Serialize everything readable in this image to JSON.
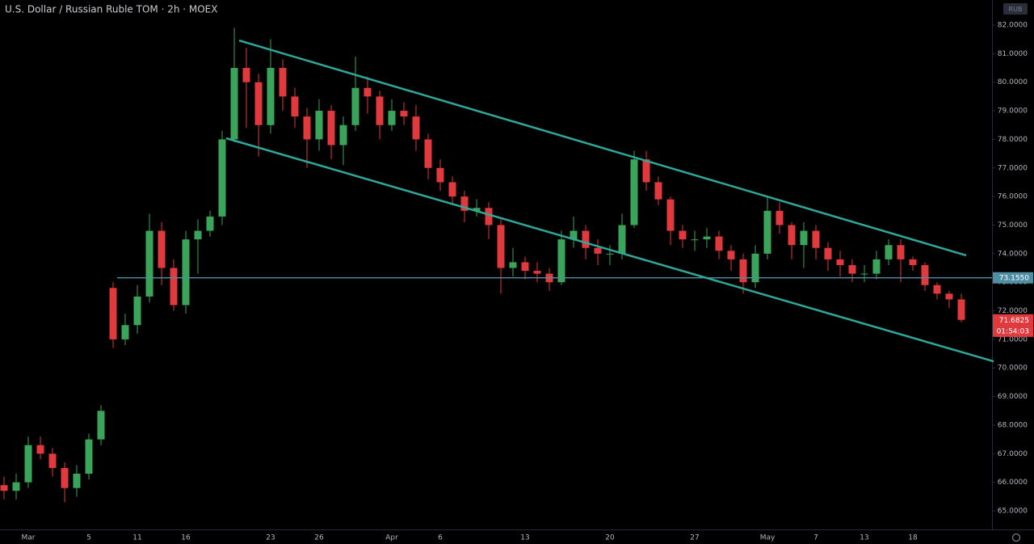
{
  "chart_data": {
    "type": "candlestick",
    "title": "U.S. Dollar / Russian Ruble TOM · 2h · MOEX",
    "currency": "RUB",
    "countdown": "01:54:03",
    "up_color": "#3aa55a",
    "down_color": "#e0393e",
    "categories": [
      null,
      null,
      "Mar",
      null,
      null,
      null,
      null,
      "5",
      null,
      null,
      null,
      "11",
      null,
      null,
      null,
      "16",
      null,
      null,
      null,
      null,
      null,
      null,
      "23",
      null,
      null,
      null,
      "26",
      null,
      null,
      null,
      null,
      null,
      "Apr",
      null,
      null,
      null,
      "6",
      null,
      null,
      null,
      null,
      null,
      null,
      "13",
      null,
      null,
      null,
      null,
      null,
      null,
      "20",
      null,
      null,
      null,
      null,
      null,
      null,
      "27",
      null,
      null,
      null,
      null,
      null,
      "May",
      null,
      null,
      null,
      "7",
      null,
      null,
      null,
      "13",
      null,
      null,
      null,
      "18",
      null,
      null,
      null,
      null
    ],
    "open": [
      65.9,
      65.7,
      66.0,
      67.3,
      67.0,
      66.5,
      65.8,
      66.3,
      67.5,
      72.8,
      71.0,
      71.5,
      72.5,
      74.8,
      73.5,
      72.2,
      74.5,
      74.8,
      75.3,
      78.0,
      80.5,
      80.0,
      78.5,
      80.5,
      79.5,
      78.8,
      78.0,
      79.0,
      77.8,
      78.5,
      79.8,
      79.5,
      78.5,
      79.0,
      78.8,
      78.0,
      77.0,
      76.5,
      76.0,
      75.5,
      75.6,
      75.0,
      73.5,
      73.7,
      73.4,
      73.3,
      73.0,
      74.5,
      74.8,
      74.2,
      74.0,
      74.0,
      75.0,
      77.3,
      76.5,
      75.9,
      74.8,
      74.5,
      74.5,
      74.6,
      74.1,
      73.8,
      73.0,
      74.0,
      75.5,
      75.0,
      74.3,
      74.8,
      74.2,
      73.8,
      73.6,
      73.3,
      73.3,
      73.8,
      74.3,
      73.8,
      73.6,
      72.9,
      72.6,
      72.4
    ],
    "high": [
      66.2,
      66.3,
      67.6,
      67.6,
      67.2,
      66.7,
      66.6,
      67.7,
      68.7,
      73.0,
      71.9,
      72.9,
      75.4,
      75.1,
      73.8,
      74.8,
      75.2,
      75.5,
      78.3,
      81.9,
      81.2,
      80.3,
      81.5,
      80.8,
      79.8,
      79.1,
      79.4,
      79.2,
      78.8,
      80.9,
      80.2,
      79.7,
      79.4,
      79.3,
      79.2,
      78.2,
      77.3,
      76.7,
      76.2,
      75.9,
      75.8,
      75.2,
      74.2,
      73.9,
      73.7,
      73.5,
      74.8,
      75.3,
      75.0,
      74.5,
      74.3,
      75.4,
      77.6,
      77.6,
      76.7,
      76.0,
      75.0,
      74.8,
      74.9,
      74.8,
      74.3,
      74.0,
      74.3,
      76.0,
      75.8,
      75.1,
      75.1,
      75.0,
      74.4,
      74.1,
      73.8,
      73.6,
      74.1,
      74.5,
      74.5,
      73.9,
      73.7,
      73.0,
      72.7,
      72.6
    ],
    "low": [
      65.4,
      65.4,
      65.8,
      66.8,
      66.2,
      65.3,
      65.5,
      66.1,
      67.3,
      70.7,
      70.8,
      71.2,
      72.3,
      72.9,
      72.0,
      71.9,
      73.3,
      74.6,
      75.0,
      77.9,
      78.4,
      77.4,
      78.2,
      79.0,
      78.4,
      77.0,
      77.6,
      77.3,
      77.1,
      78.3,
      78.9,
      78.0,
      78.3,
      78.5,
      77.6,
      76.6,
      76.2,
      75.7,
      75.1,
      75.3,
      74.5,
      72.6,
      73.2,
      73.1,
      73.0,
      72.7,
      72.9,
      74.2,
      73.8,
      73.6,
      73.6,
      73.8,
      74.9,
      76.2,
      75.7,
      74.3,
      74.2,
      74.1,
      74.2,
      73.8,
      73.4,
      72.6,
      72.8,
      73.8,
      74.7,
      73.8,
      73.5,
      73.8,
      73.4,
      73.2,
      73.0,
      73.0,
      73.1,
      73.6,
      73.0,
      73.4,
      72.7,
      72.4,
      72.1,
      71.6
    ],
    "close": [
      65.7,
      66.0,
      67.3,
      67.0,
      66.5,
      65.8,
      66.3,
      67.5,
      68.5,
      71.0,
      71.5,
      72.5,
      74.8,
      73.5,
      72.2,
      74.5,
      74.8,
      75.3,
      78.0,
      80.5,
      80.0,
      78.5,
      80.5,
      79.5,
      78.8,
      78.0,
      79.0,
      77.8,
      78.5,
      79.8,
      79.5,
      78.5,
      79.0,
      78.8,
      78.0,
      77.0,
      76.5,
      76.0,
      75.5,
      75.6,
      75.0,
      73.5,
      73.7,
      73.4,
      73.3,
      73.0,
      74.5,
      74.8,
      74.2,
      74.0,
      74.0,
      75.0,
      77.3,
      76.5,
      75.9,
      74.8,
      74.5,
      74.5,
      74.6,
      74.1,
      73.8,
      73.0,
      74.0,
      75.5,
      75.0,
      74.3,
      74.8,
      74.2,
      73.8,
      73.6,
      73.3,
      73.3,
      73.8,
      74.3,
      73.8,
      73.6,
      72.9,
      72.6,
      72.4,
      71.6825
    ],
    "ylim": [
      64.3,
      82.9
    ],
    "yticks": [
      {
        "value": 65,
        "label": "65.0000"
      },
      {
        "value": 66,
        "label": "66.0000"
      },
      {
        "value": 67,
        "label": "67.0000"
      },
      {
        "value": 68,
        "label": "68.0000"
      },
      {
        "value": 69,
        "label": "69.0000"
      },
      {
        "value": 70,
        "label": "70.0000"
      },
      {
        "value": 71,
        "label": "71.0000"
      },
      {
        "value": 72,
        "label": "72.0000"
      },
      {
        "value": 73,
        "label": "73.0000"
      },
      {
        "value": 74,
        "label": "74.0000"
      },
      {
        "value": 75,
        "label": "75.0000"
      },
      {
        "value": 76,
        "label": "76.0000"
      },
      {
        "value": 77,
        "label": "77.0000"
      },
      {
        "value": 78,
        "label": "78.0000"
      },
      {
        "value": 79,
        "label": "79.0000"
      },
      {
        "value": 80,
        "label": "80.0000"
      },
      {
        "value": 81,
        "label": "81.0000"
      },
      {
        "value": 82,
        "label": "82.0000"
      }
    ],
    "hline": {
      "value": 73.155,
      "label": "73.1550",
      "color": "#4f8fa6"
    },
    "trend_lines": [
      {
        "color": "#2fa89a",
        "x": [
          19.4,
          79.4
        ],
        "y": [
          81.46,
          73.94
        ]
      },
      {
        "color": "#2fa89a",
        "x": [
          18.33,
          81.67
        ],
        "y": [
          78.04,
          70.23
        ]
      }
    ]
  }
}
